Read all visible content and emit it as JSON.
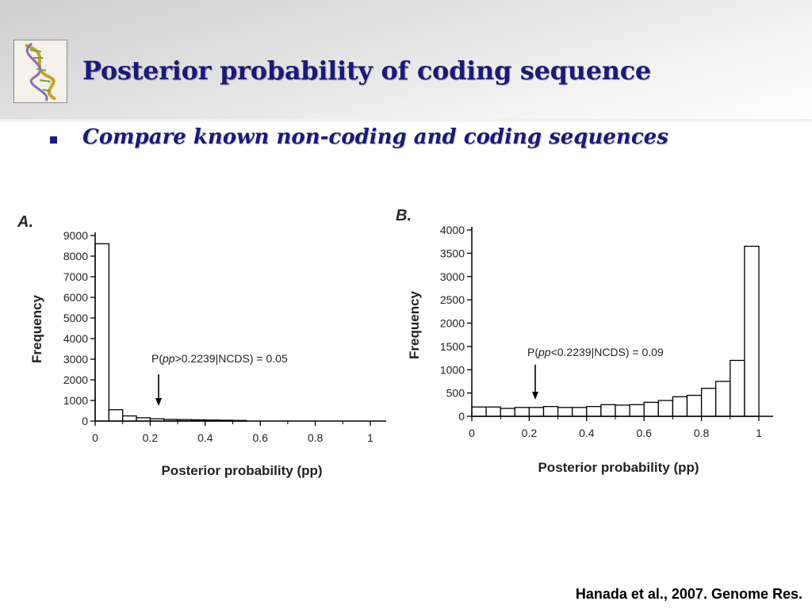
{
  "slide": {
    "title": "Posterior probability of coding sequence",
    "bullet": "Compare known non-coding and coding sequences",
    "citation": "Hanada et al., 2007. Genome Res."
  },
  "logo": {
    "icon": "dna-helix-icon"
  },
  "colors": {
    "title": "#1a1a7a",
    "bar_fill": "#ffffff",
    "bar_stroke": "#000000"
  },
  "chart_data": [
    {
      "type": "bar",
      "panel_label": "A.",
      "title": "",
      "xlabel": "Posterior probability (pp)",
      "ylabel": "Frequency",
      "xlim": [
        0,
        1
      ],
      "ylim": [
        0,
        9000
      ],
      "xticks": [
        0,
        0.2,
        0.4,
        0.6,
        0.8,
        1
      ],
      "xtick_labels": [
        "0",
        "0.2",
        "0.4",
        "0.6",
        "0.8",
        "1"
      ],
      "yticks": [
        0,
        1000,
        2000,
        3000,
        4000,
        5000,
        6000,
        7000,
        8000,
        9000
      ],
      "ytick_labels": [
        "0",
        "1000",
        "2000",
        "3000",
        "4000",
        "5000",
        "6000",
        "7000",
        "8000",
        "9000"
      ],
      "bin_width": 0.05,
      "bin_starts": [
        0,
        0.05,
        0.1,
        0.15,
        0.2,
        0.25,
        0.3,
        0.35,
        0.4,
        0.45,
        0.5
      ],
      "values": [
        8600,
        550,
        250,
        160,
        110,
        80,
        70,
        60,
        50,
        40,
        30
      ],
      "annotation": {
        "text_prefix": "P(",
        "text_italic": "pp",
        "text_suffix": ">0.2239|NCDS) = 0.05",
        "x": 0.2239
      },
      "grid": false
    },
    {
      "type": "bar",
      "panel_label": "B.",
      "title": "",
      "xlabel": "Posterior probability (pp)",
      "ylabel": "Frequency",
      "xlim": [
        0,
        1
      ],
      "ylim": [
        0,
        4000
      ],
      "xticks": [
        0,
        0.2,
        0.4,
        0.6,
        0.8,
        1
      ],
      "xtick_labels": [
        "0",
        "0.2",
        "0.4",
        "0.6",
        "0.8",
        "1"
      ],
      "yticks": [
        0,
        500,
        1000,
        1500,
        2000,
        2500,
        3000,
        3500,
        4000
      ],
      "ytick_labels": [
        "0",
        "500",
        "1000",
        "1500",
        "2000",
        "2500",
        "3000",
        "3500",
        "4000"
      ],
      "bin_width": 0.05,
      "bin_starts": [
        0,
        0.05,
        0.1,
        0.15,
        0.2,
        0.25,
        0.3,
        0.35,
        0.4,
        0.45,
        0.5,
        0.55,
        0.6,
        0.65,
        0.7,
        0.75,
        0.8,
        0.85,
        0.9,
        0.95
      ],
      "values": [
        200,
        200,
        170,
        190,
        190,
        210,
        190,
        190,
        210,
        250,
        240,
        250,
        300,
        340,
        420,
        450,
        600,
        750,
        1200,
        3650
      ],
      "annotation": {
        "text_prefix": "P(",
        "text_italic": "pp",
        "text_suffix": "<0.2239|NCDS) = 0.09",
        "x": 0.2239
      },
      "grid": false
    }
  ]
}
